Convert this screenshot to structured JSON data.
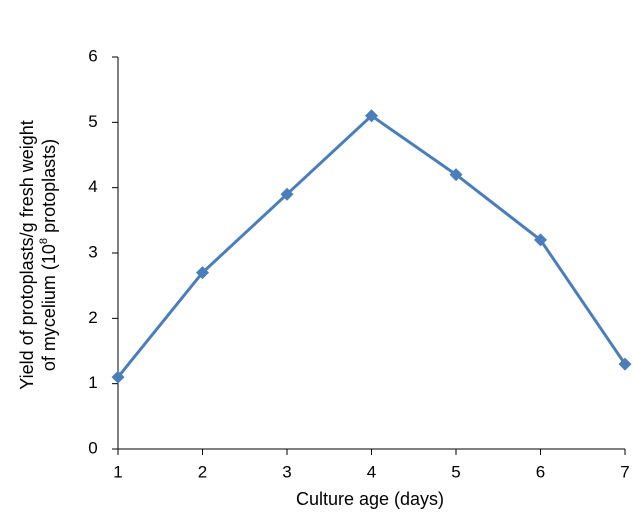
{
  "chart_data": {
    "type": "line",
    "xlabel": "Culture age (days)",
    "ylabel_line1": "Yield of protoplasts/g fresh weight",
    "ylabel_line2_prefix": "of mycelium (10",
    "ylabel_line2_sup": "8",
    "ylabel_line2_suffix": " protoplasts)",
    "x_ticks": [
      "1",
      "2",
      "3",
      "4",
      "5",
      "6",
      "7"
    ],
    "y_ticks": [
      "0",
      "1",
      "2",
      "3",
      "4",
      "5",
      "6"
    ],
    "xlim": [
      1,
      7
    ],
    "ylim": [
      0,
      6
    ],
    "grid": false,
    "series": [
      {
        "x": [
          1,
          2,
          3,
          4,
          5,
          6,
          7
        ],
        "values": [
          1.1,
          2.7,
          3.9,
          5.1,
          4.2,
          3.2,
          1.3
        ],
        "color": "#4a7ebb",
        "marker": "diamond"
      }
    ]
  }
}
